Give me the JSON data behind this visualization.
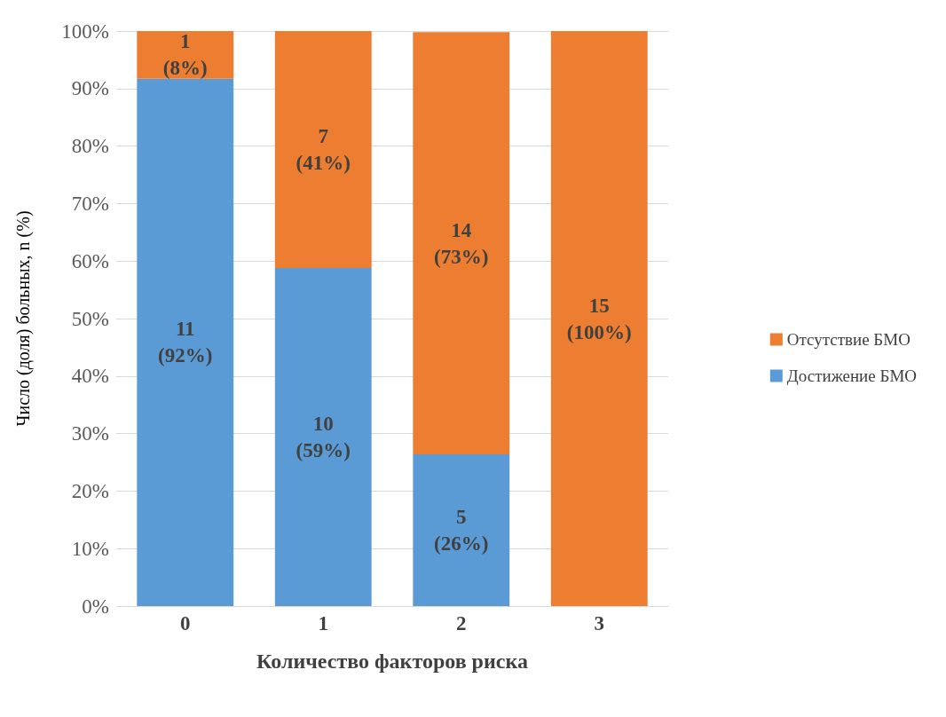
{
  "chart_data": {
    "type": "bar",
    "stacked": true,
    "xlabel": "Количество факторов риска",
    "ylabel": "Число (доля) больных, n (%)",
    "categories": [
      "0",
      "1",
      "2",
      "3"
    ],
    "series": [
      {
        "name": "Достижение БМО",
        "color": "#5b9bd5",
        "values": [
          91.7,
          58.8,
          26.4,
          0
        ],
        "value_labels": [
          "11\n(92%)",
          "10\n(59%)",
          "5\n(26%)",
          null
        ]
      },
      {
        "name": "Отсутствие БМО",
        "color": "#ed7d31",
        "values": [
          8.3,
          41.2,
          73.4,
          100
        ],
        "value_labels": [
          "1\n(8%)",
          "7\n(41%)",
          "14\n(73%)",
          "15\n(100%)"
        ]
      }
    ],
    "ylim": [
      0,
      100
    ],
    "yticks": [
      {
        "value": 0,
        "label": "0%"
      },
      {
        "value": 10,
        "label": "10%"
      },
      {
        "value": 20,
        "label": "20%"
      },
      {
        "value": 30,
        "label": "30%"
      },
      {
        "value": 40,
        "label": "40%"
      },
      {
        "value": 50,
        "label": "50%"
      },
      {
        "value": 60,
        "label": "60%"
      },
      {
        "value": 70,
        "label": "70%"
      },
      {
        "value": 80,
        "label": "80%"
      },
      {
        "value": 90,
        "label": "90%"
      },
      {
        "value": 100,
        "label": "100%"
      }
    ],
    "grid": "y",
    "legend": "right"
  }
}
